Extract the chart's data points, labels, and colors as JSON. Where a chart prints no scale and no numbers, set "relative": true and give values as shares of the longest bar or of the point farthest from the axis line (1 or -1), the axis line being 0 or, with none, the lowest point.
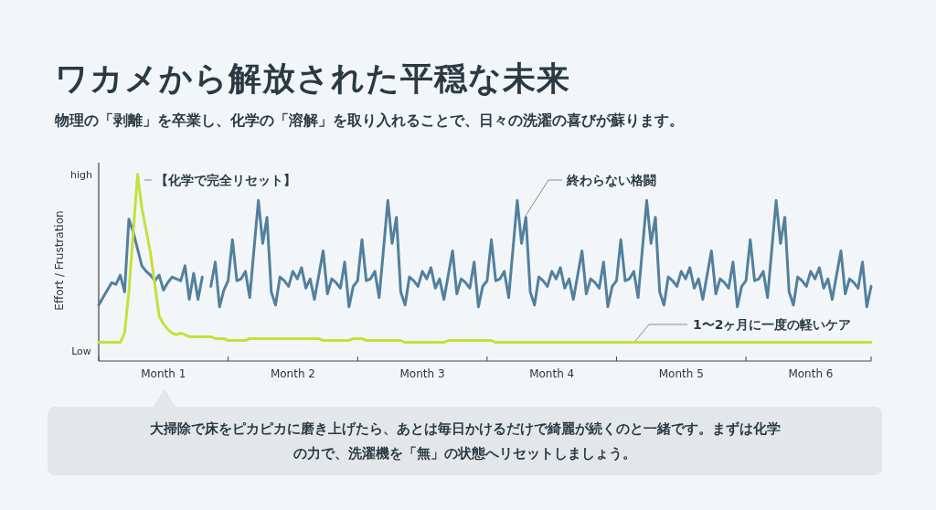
{
  "chart_data": {
    "type": "line",
    "title": "ワカメから解放された平穏な未来",
    "subtitle": "物理の「剥離」を卒業し、化学の「溶解」を取り入れることで、日々の洗濯の喜びが蘇ります。",
    "ylabel": "Effort / Frustration",
    "relative": true,
    "categories": [
      null,
      null,
      null,
      null,
      null,
      null,
      null,
      null,
      null,
      null,
      null,
      null,
      null,
      null,
      null,
      "Month 1",
      null,
      null,
      null,
      null,
      null,
      null,
      null,
      null,
      null,
      null,
      null,
      null,
      null,
      null,
      null,
      null,
      null,
      null,
      null,
      null,
      null,
      null,
      null,
      null,
      null,
      null,
      null,
      null,
      null,
      "Month 2",
      null,
      null,
      null,
      null,
      null,
      null,
      null,
      null,
      null,
      null,
      null,
      null,
      null,
      null,
      null,
      null,
      null,
      null,
      null,
      null,
      null,
      null,
      null,
      null,
      null,
      null,
      null,
      null,
      null,
      "Month 3",
      null,
      null,
      null,
      null,
      null,
      null,
      null,
      null,
      null,
      null,
      null,
      null,
      null,
      null,
      null,
      null,
      null,
      null,
      null,
      null,
      null,
      null,
      null,
      null,
      null,
      null,
      null,
      null,
      null,
      "Month 4",
      null,
      null,
      null,
      null,
      null,
      null,
      null,
      null,
      null,
      null,
      null,
      null,
      null,
      null,
      null,
      null,
      null,
      null,
      null,
      null,
      null,
      null,
      null,
      null,
      null,
      null,
      null,
      null,
      null,
      "Month 5",
      null,
      null,
      null,
      null,
      null,
      null,
      null,
      null,
      null,
      null,
      null,
      null,
      null,
      null,
      null,
      null,
      null,
      null,
      null,
      null,
      null,
      null,
      null,
      null,
      null,
      null,
      null,
      null,
      null,
      "Month 6",
      null,
      null,
      null,
      null,
      null,
      null,
      null,
      null,
      null,
      null,
      null,
      null,
      null,
      null
    ],
    "series": [
      {
        "color": "#52809e",
        "values": [
          0.3,
          0.34,
          0.38,
          0.42,
          0.41,
          0.46,
          0.37,
          0.76,
          0.69,
          0.6,
          0.51,
          0.48,
          0.46,
          0.43,
          0.46,
          0.38,
          0.42,
          0.45,
          0.44,
          0.43,
          0.51,
          0.33,
          0.47,
          0.33,
          0.45,
          null,
          0.4,
          0.53,
          0.29,
          0.38,
          0.43,
          0.65,
          0.43,
          0.44,
          0.48,
          0.34,
          0.6,
          0.86,
          0.63,
          0.77,
          0.37,
          0.3,
          0.45,
          0.43,
          0.4,
          0.48,
          0.44,
          0.5,
          0.39,
          0.44,
          0.33,
          0.46,
          0.59,
          0.36,
          0.44,
          0.42,
          0.39,
          0.53,
          0.29,
          0.4,
          0.43,
          0.65,
          0.43,
          0.44,
          0.48,
          0.34,
          0.6,
          0.86,
          0.63,
          0.77,
          0.37,
          0.3,
          0.45,
          0.43,
          0.4,
          0.48,
          0.44,
          0.5,
          0.39,
          0.44,
          0.33,
          0.46,
          0.59,
          0.36,
          0.44,
          0.42,
          0.39,
          0.53,
          0.29,
          0.4,
          0.43,
          0.65,
          0.43,
          0.44,
          0.48,
          0.34,
          0.6,
          0.86,
          0.63,
          0.77,
          0.37,
          0.3,
          0.45,
          0.43,
          0.4,
          0.48,
          0.44,
          0.5,
          0.39,
          0.44,
          0.33,
          0.46,
          0.59,
          0.36,
          0.44,
          0.42,
          0.39,
          0.53,
          0.29,
          0.4,
          0.43,
          0.65,
          0.43,
          0.44,
          0.48,
          0.34,
          0.6,
          0.86,
          0.63,
          0.77,
          0.37,
          0.3,
          0.45,
          0.43,
          0.4,
          0.48,
          0.44,
          0.5,
          0.39,
          0.44,
          0.33,
          0.46,
          0.59,
          0.36,
          0.44,
          0.42,
          0.39,
          0.53,
          0.29,
          0.4,
          0.43,
          0.65,
          0.43,
          0.44,
          0.48,
          0.34,
          0.6,
          0.86,
          0.63,
          0.77,
          0.37,
          0.3,
          0.45,
          0.43,
          0.4,
          0.48,
          0.44,
          0.5,
          0.39,
          0.44,
          0.33,
          0.46,
          0.59,
          0.36,
          0.44,
          0.42,
          0.39,
          0.53,
          0.29,
          0.4
        ]
      },
      {
        "color": "#c5e03a",
        "values": [
          0.1,
          0.1,
          0.1,
          0.1,
          0.1,
          0.1,
          0.15,
          0.37,
          0.69,
          1,
          0.82,
          0.7,
          0.58,
          0.41,
          0.24,
          0.2,
          0.17,
          0.15,
          0.14,
          0.15,
          0.14,
          0.13,
          0.13,
          0.13,
          0.13,
          0.13,
          0.13,
          0.12,
          0.12,
          0.12,
          0.11,
          0.11,
          0.11,
          0.11,
          0.11,
          0.12,
          0.12,
          0.12,
          0.12,
          0.12,
          0.12,
          0.12,
          0.12,
          0.12,
          0.12,
          0.12,
          0.12,
          0.12,
          0.12,
          0.12,
          0.12,
          0.12,
          0.11,
          0.11,
          0.11,
          0.11,
          0.11,
          0.11,
          0.11,
          0.12,
          0.12,
          0.12,
          0.11,
          0.11,
          0.11,
          0.11,
          0.11,
          0.11,
          0.11,
          0.11,
          0.11,
          0.1,
          0.1,
          0.1,
          0.1,
          0.1,
          0.1,
          0.1,
          0.1,
          0.1,
          0.1,
          0.11,
          0.11,
          0.11,
          0.11,
          0.11,
          0.11,
          0.11,
          0.11,
          0.11,
          0.11,
          0.11,
          0.1,
          0.1,
          0.1,
          0.1,
          0.1,
          0.1,
          0.1,
          0.1,
          0.1,
          0.1,
          0.1,
          0.1,
          0.1,
          0.1,
          0.1,
          0.1,
          0.1,
          0.1,
          0.1,
          0.1,
          0.1,
          0.1,
          0.1,
          0.1,
          0.1,
          0.1,
          0.1,
          0.1,
          0.1,
          0.1,
          0.1,
          0.1,
          0.1,
          0.1,
          0.1,
          0.1,
          0.1,
          0.1,
          0.1,
          0.1,
          0.1,
          0.1,
          0.1,
          0.1,
          0.1,
          0.1,
          0.1,
          0.1,
          0.1,
          0.1,
          0.1,
          0.1,
          0.1,
          0.1,
          0.1,
          0.1,
          0.1,
          0.1,
          0.1,
          0.1,
          0.1,
          0.1,
          0.1,
          0.1,
          0.1,
          0.1,
          0.1,
          0.1,
          0.1,
          0.1,
          0.1,
          0.1,
          0.1,
          0.1,
          0.1,
          0.1,
          0.1,
          0.1,
          0.1,
          0.1,
          0.1,
          0.1,
          0.1,
          0.1,
          0.1,
          0.1,
          0.1,
          0.1
        ]
      }
    ],
    "annotations": [
      "【化学で完全リセット】",
      "終わらない格闘",
      "1〜2ヶ月に一度の軽いケア",
      "high",
      "Low",
      "大掃除で床をピカピカに磨き上げたら、あとは毎日かけるだけで綺麗が続くのと一緒です。まずは化学の力で、洗濯機を「無」の状態へリセットしましょう。"
    ]
  }
}
